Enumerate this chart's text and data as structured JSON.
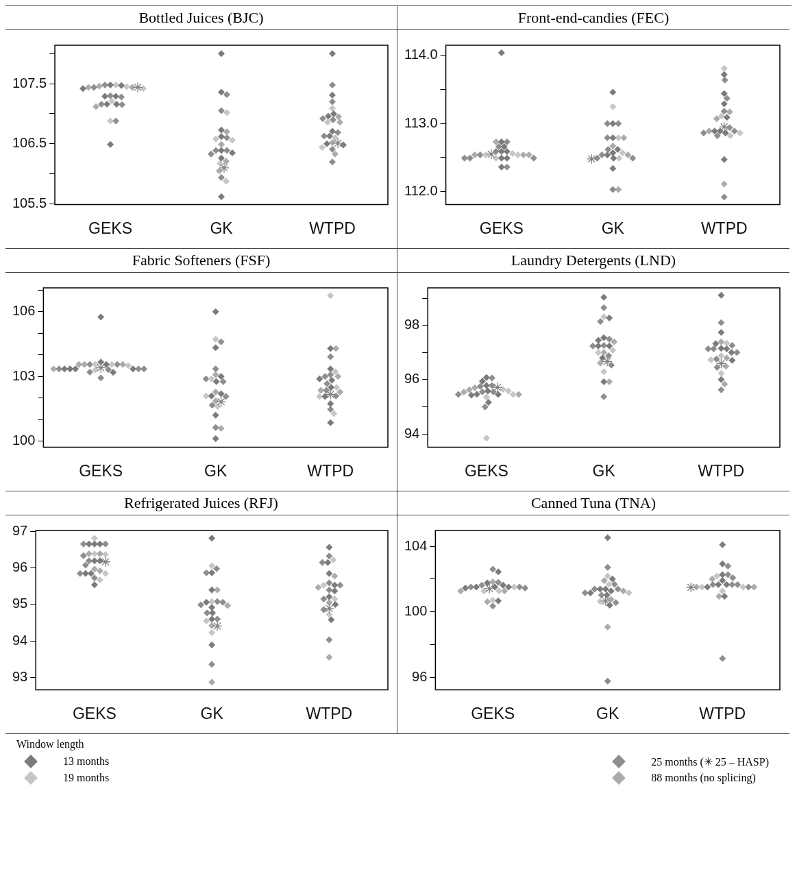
{
  "chart_data": [
    {
      "type": "scatter",
      "title": "Bottled Juices (BJC)",
      "categories": [
        "GEKS",
        "GK",
        "WTPD"
      ],
      "marker": "diamond",
      "legend": "bottom",
      "legend_title": "Window length",
      "ylim": [
        105.49,
        108.14
      ],
      "yticks": [
        105.5,
        {
          "value": 106,
          "label": null
        },
        106.5,
        {
          "value": 107,
          "label": null
        },
        107.5,
        {
          "value": 108,
          "label": null
        }
      ],
      "series": [
        {
          "name": "13 months",
          "color": "#7b7b7b",
          "x": [
            "GEKS",
            "GEKS",
            "GEKS",
            "GEKS",
            "GEKS",
            "GEKS",
            "GEKS",
            "GEKS",
            "GK",
            "GK",
            "GK",
            "GK",
            "GK",
            "GK",
            "GK",
            "GK",
            "WTPD",
            "WTPD",
            "WTPD",
            "WTPD",
            "WTPD",
            "WTPD",
            "WTPD",
            "WTPD"
          ],
          "values": [
            107.47,
            107.42,
            107.48,
            107.29,
            107.29,
            107.16,
            107.16,
            106.49,
            108.0,
            107.36,
            106.73,
            106.62,
            106.39,
            106.35,
            106.26,
            105.62,
            108.0,
            107.31,
            107.0,
            106.96,
            106.71,
            106.63,
            106.48,
            106.5
          ]
        },
        {
          "name": "19 months",
          "color": "#c6c6c6",
          "x": [
            "GEKS",
            "GEKS",
            "GEKS",
            "GEKS",
            "GEKS",
            "GK",
            "GK",
            "GK",
            "GK",
            "GK",
            "WTPD",
            "WTPD",
            "WTPD",
            "WTPD"
          ],
          "values": [
            107.48,
            107.42,
            107.45,
            107.21,
            106.88,
            107.02,
            106.56,
            106.58,
            106.17,
            105.88,
            107.09,
            106.86,
            106.6,
            106.44
          ]
        },
        {
          "name": "25 months (✳ 25 – HASP)",
          "color": "#8e8e8e",
          "x": [
            "GEKS",
            "GEKS",
            "GEKS",
            "GEKS",
            "GEKS",
            "GEKS",
            "GEKS",
            "GK",
            "GK",
            "GK",
            "GK",
            "GK",
            "GK",
            "GK",
            "WTPD",
            "WTPD",
            "WTPD",
            "WTPD",
            "WTPD",
            "WTPD",
            "WTPD",
            "WTPD"
          ],
          "values": [
            107.44,
            107.48,
            107.3,
            107.28,
            107.16,
            107.15,
            106.88,
            107.32,
            107.05,
            106.6,
            106.39,
            106.33,
            106.39,
            105.94,
            107.48,
            107.2,
            106.9,
            106.92,
            106.69,
            106.63,
            106.41,
            106.2
          ]
        },
        {
          "name": "88 months (no splicing)",
          "color": "#ababab",
          "x": [
            "GEKS",
            "GEKS",
            "GEKS",
            "GEKS",
            "GK",
            "GK",
            "GK",
            "GK",
            "WTPD",
            "WTPD",
            "WTPD",
            "WTPD"
          ],
          "values": [
            107.44,
            107.44,
            107.46,
            107.12,
            106.7,
            106.49,
            106.21,
            106.05,
            106.95,
            106.86,
            106.52,
            106.33
          ]
        },
        {
          "color": "#808080",
          "marker": "cross",
          "x": [
            "GEKS",
            "GK",
            "WTPD"
          ],
          "values": [
            107.44,
            106.1,
            106.51
          ]
        }
      ]
    },
    {
      "type": "scatter",
      "title": "Front-end-candies (FEC)",
      "categories": [
        "GEKS",
        "GK",
        "WTPD"
      ],
      "marker": "diamond",
      "ylim": [
        111.81,
        114.15
      ],
      "yticks": [
        {
          "value": 112,
          "label": "112.0"
        },
        {
          "value": 112.5,
          "label": null
        },
        {
          "value": 113,
          "label": "113.0"
        },
        {
          "value": 113.5,
          "label": null
        },
        {
          "value": 114,
          "label": "114.0"
        }
      ],
      "series": [
        {
          "color": "#7b7b7b",
          "x": [
            "GEKS",
            "GEKS",
            "GEKS",
            "GEKS",
            "GEKS",
            "GEKS",
            "GEKS",
            "GEKS",
            "GK",
            "GK",
            "GK",
            "GK",
            "GK",
            "GK",
            "GK",
            "GK",
            "WTPD",
            "WTPD",
            "WTPD",
            "WTPD",
            "WTPD",
            "WTPD",
            "WTPD",
            "WTPD"
          ],
          "values": [
            114.04,
            112.49,
            112.49,
            112.59,
            112.59,
            112.66,
            112.73,
            112.36,
            113.46,
            113.0,
            112.79,
            112.62,
            112.57,
            112.54,
            112.49,
            112.34,
            113.72,
            113.44,
            113.29,
            113.09,
            112.89,
            112.86,
            112.89,
            112.47
          ]
        },
        {
          "color": "#c6c6c6",
          "x": [
            "GEKS",
            "GEKS",
            "GEKS",
            "GEKS",
            "GK",
            "GK",
            "GK",
            "GK",
            "WTPD",
            "WTPD",
            "WTPD",
            "WTPD"
          ],
          "values": [
            112.54,
            112.54,
            112.49,
            112.56,
            113.25,
            112.79,
            112.57,
            112.49,
            113.81,
            113.11,
            112.86,
            112.82
          ]
        },
        {
          "color": "#8e8e8e",
          "x": [
            "GEKS",
            "GEKS",
            "GEKS",
            "GEKS",
            "GEKS",
            "GEKS",
            "GEKS",
            "GEKS",
            "GK",
            "GK",
            "GK",
            "GK",
            "GK",
            "GK",
            "GK",
            "GK",
            "WTPD",
            "WTPD",
            "WTPD",
            "WTPD",
            "WTPD",
            "WTPD",
            "WTPD",
            "WTPD"
          ],
          "values": [
            112.54,
            112.49,
            112.49,
            112.49,
            112.59,
            112.66,
            112.73,
            112.36,
            113.0,
            113.0,
            112.79,
            112.62,
            112.54,
            112.49,
            112.49,
            112.03,
            113.64,
            113.37,
            113.18,
            112.94,
            112.89,
            112.86,
            112.82,
            111.92
          ]
        },
        {
          "color": "#ababab",
          "x": [
            "GEKS",
            "GEKS",
            "GEKS",
            "GEKS",
            "GK",
            "GK",
            "GK",
            "GK",
            "WTPD",
            "WTPD",
            "WTPD",
            "WTPD"
          ],
          "values": [
            112.54,
            112.54,
            112.54,
            112.73,
            112.79,
            112.67,
            112.54,
            112.03,
            113.17,
            113.07,
            112.89,
            112.11
          ]
        },
        {
          "color": "#808080",
          "marker": "cross",
          "x": [
            "GEKS",
            "GK",
            "WTPD"
          ],
          "values": [
            112.55,
            112.48,
            112.95
          ]
        }
      ]
    },
    {
      "type": "scatter",
      "title": "Fabric Softeners (FSF)",
      "categories": [
        "GEKS",
        "GK",
        "WTPD"
      ],
      "marker": "diamond",
      "ylim": [
        99.73,
        107.1
      ],
      "yticks": [
        100,
        {
          "value": 101,
          "label": null
        },
        {
          "value": 102,
          "label": null
        },
        103,
        {
          "value": 104,
          "label": null
        },
        {
          "value": 105,
          "label": null
        },
        106,
        {
          "value": 107,
          "label": null
        }
      ],
      "series": [
        {
          "color": "#7b7b7b",
          "x": [
            "GEKS",
            "GEKS",
            "GEKS",
            "GEKS",
            "GEKS",
            "GEKS",
            "GEKS",
            "GEKS",
            "GK",
            "GK",
            "GK",
            "GK",
            "GK",
            "GK",
            "GK",
            "GK",
            "WTPD",
            "WTPD",
            "WTPD",
            "WTPD",
            "WTPD",
            "WTPD",
            "WTPD",
            "WTPD"
          ],
          "values": [
            105.75,
            103.35,
            103.35,
            103.35,
            103.19,
            103.35,
            103.67,
            103.56,
            106.0,
            104.33,
            103.0,
            102.76,
            102.2,
            102.1,
            101.21,
            100.12,
            104.29,
            103.35,
            102.89,
            102.83,
            102.49,
            102.07,
            101.74,
            100.86
          ]
        },
        {
          "color": "#c6c6c6",
          "x": [
            "GEKS",
            "GEKS",
            "GEKS",
            "GEKS",
            "GK",
            "GK",
            "GK",
            "GK",
            "WTPD",
            "WTPD",
            "WTPD",
            "WTPD",
            "WTPD"
          ],
          "values": [
            103.3,
            103.56,
            103.5,
            103.56,
            104.72,
            102.89,
            102.1,
            101.61,
            106.74,
            103.22,
            102.49,
            102.07,
            101.28
          ]
        },
        {
          "color": "#8e8e8e",
          "x": [
            "GEKS",
            "GEKS",
            "GEKS",
            "GEKS",
            "GEKS",
            "GEKS",
            "GEKS",
            "GEKS",
            "GK",
            "GK",
            "GK",
            "GK",
            "GK",
            "GK",
            "GK",
            "WTPD",
            "WTPD",
            "WTPD",
            "WTPD",
            "WTPD",
            "WTPD",
            "WTPD"
          ],
          "values": [
            103.35,
            103.35,
            103.35,
            103.32,
            103.2,
            103.56,
            103.56,
            102.94,
            104.6,
            103.35,
            102.76,
            102.89,
            102.07,
            101.67,
            100.64,
            103.91,
            103.0,
            103.08,
            102.67,
            102.36,
            102.1,
            101.48
          ]
        },
        {
          "color": "#ababab",
          "x": [
            "GEKS",
            "GEKS",
            "GEKS",
            "GEKS",
            "GK",
            "GK",
            "GK",
            "GK",
            "WTPD",
            "WTPD",
            "WTPD",
            "WTPD"
          ],
          "values": [
            103.35,
            103.56,
            103.56,
            103.56,
            103.08,
            102.28,
            101.87,
            100.6,
            104.29,
            103.0,
            102.36,
            102.28
          ]
        },
        {
          "color": "#808080",
          "marker": "cross",
          "x": [
            "GEKS",
            "GK",
            "WTPD"
          ],
          "values": [
            103.4,
            101.83,
            102.17
          ]
        }
      ]
    },
    {
      "type": "scatter",
      "title": "Laundry Detergents (LND)",
      "categories": [
        "GEKS",
        "GK",
        "WTPD"
      ],
      "marker": "diamond",
      "ylim": [
        93.51,
        99.38
      ],
      "yticks": [
        94,
        {
          "value": 95,
          "label": null
        },
        96,
        {
          "value": 97,
          "label": null
        },
        98,
        {
          "value": 99,
          "label": null
        }
      ],
      "series": [
        {
          "color": "#7b7b7b",
          "x": [
            "GEKS",
            "GEKS",
            "GEKS",
            "GEKS",
            "GEKS",
            "GEKS",
            "GEKS",
            "GEKS",
            "GK",
            "GK",
            "GK",
            "GK",
            "GK",
            "GK",
            "GK",
            "GK",
            "WTPD",
            "WTPD",
            "WTPD",
            "WTPD",
            "WTPD",
            "WTPD",
            "WTPD",
            "WTPD"
          ],
          "values": [
            95.58,
            95.45,
            95.43,
            96.08,
            95.94,
            95.78,
            95.16,
            95.46,
            99.03,
            98.27,
            97.54,
            97.45,
            97.24,
            97.24,
            96.8,
            95.92,
            99.11,
            97.74,
            97.32,
            97.13,
            97.15,
            97.0,
            96.71,
            96.0
          ]
        },
        {
          "color": "#c6c6c6",
          "x": [
            "GEKS",
            "GEKS",
            "GEKS",
            "GEKS",
            "GEKS",
            "GK",
            "GK",
            "GK",
            "GK",
            "WTPD",
            "WTPD",
            "WTPD",
            "WTPD"
          ],
          "values": [
            95.58,
            95.45,
            95.64,
            95.35,
            93.84,
            98.31,
            97.08,
            96.99,
            96.29,
            97.34,
            96.88,
            96.73,
            96.23
          ]
        },
        {
          "color": "#8e8e8e",
          "x": [
            "GEKS",
            "GEKS",
            "GEKS",
            "GEKS",
            "GEKS",
            "GEKS",
            "GEKS",
            "GK",
            "GK",
            "GK",
            "GK",
            "GK",
            "GK",
            "GK",
            "GK",
            "WTPD",
            "WTPD",
            "WTPD",
            "WTPD",
            "WTPD",
            "WTPD",
            "WTPD",
            "WTPD"
          ],
          "values": [
            95.55,
            95.45,
            95.55,
            96.06,
            95.75,
            95.78,
            94.99,
            98.65,
            98.14,
            97.49,
            97.26,
            97.24,
            96.88,
            96.53,
            95.37,
            98.1,
            97.26,
            97.13,
            97.13,
            97.0,
            96.76,
            96.45,
            95.62
          ]
        },
        {
          "color": "#ababab",
          "x": [
            "GEKS",
            "GEKS",
            "GEKS",
            "GEKS",
            "GK",
            "GK",
            "GK",
            "GK",
            "WTPD",
            "WTPD",
            "WTPD",
            "WTPD"
          ],
          "values": [
            95.54,
            95.62,
            95.7,
            95.45,
            97.39,
            97.0,
            96.61,
            95.92,
            97.39,
            96.8,
            96.49,
            95.83
          ]
        },
        {
          "color": "#808080",
          "marker": "cross",
          "x": [
            "GEKS",
            "GK",
            "WTPD"
          ],
          "values": [
            95.71,
            96.67,
            96.59
          ]
        }
      ]
    },
    {
      "type": "scatter",
      "title": "Refrigerated Juices (RFJ)",
      "categories": [
        "GEKS",
        "GK",
        "WTPD"
      ],
      "marker": "diamond",
      "ylim": [
        92.66,
        97.03
      ],
      "yticks": [
        93,
        94,
        95,
        96,
        97
      ],
      "series": [
        {
          "color": "#7b7b7b",
          "x": [
            "GEKS",
            "GEKS",
            "GEKS",
            "GEKS",
            "GEKS",
            "GEKS",
            "GEKS",
            "GEKS",
            "GK",
            "GK",
            "GK",
            "GK",
            "GK",
            "GK",
            "GK",
            "GK",
            "WTPD",
            "WTPD",
            "WTPD",
            "WTPD",
            "WTPD",
            "WTPD",
            "WTPD",
            "WTPD"
          ],
          "values": [
            96.66,
            96.66,
            96.66,
            96.2,
            96.2,
            95.85,
            95.85,
            95.54,
            96.82,
            95.87,
            95.4,
            94.92,
            95.06,
            94.77,
            94.6,
            93.89,
            96.57,
            96.15,
            95.85,
            95.53,
            95.37,
            95.21,
            95.0,
            94.58
          ]
        },
        {
          "color": "#c6c6c6",
          "x": [
            "GEKS",
            "GEKS",
            "GEKS",
            "GEKS",
            "GEKS",
            "GK",
            "GK",
            "GK",
            "GK",
            "WTPD",
            "WTPD",
            "WTPD",
            "WTPD"
          ],
          "values": [
            96.82,
            96.37,
            96.39,
            95.85,
            95.67,
            96.06,
            95.08,
            94.55,
            94.23,
            96.22,
            95.53,
            95.15,
            94.72
          ]
        },
        {
          "color": "#8e8e8e",
          "x": [
            "GEKS",
            "GEKS",
            "GEKS",
            "GEKS",
            "GEKS",
            "GEKS",
            "GEKS",
            "GK",
            "GK",
            "GK",
            "GK",
            "GK",
            "GK",
            "GK",
            "GK",
            "WTPD",
            "WTPD",
            "WTPD",
            "WTPD",
            "WTPD",
            "WTPD",
            "WTPD",
            "WTPD"
          ],
          "values": [
            96.66,
            96.66,
            96.34,
            96.2,
            96.08,
            95.85,
            95.73,
            95.87,
            95.98,
            95.08,
            94.99,
            95.06,
            94.77,
            94.6,
            93.36,
            96.33,
            96.15,
            95.59,
            95.53,
            95.4,
            95.15,
            94.86,
            94.03
          ]
        },
        {
          "color": "#ababab",
          "x": [
            "GEKS",
            "GEKS",
            "GEKS",
            "GEKS",
            "GK",
            "GK",
            "GK",
            "GK",
            "WTPD",
            "WTPD",
            "WTPD",
            "WTPD"
          ],
          "values": [
            96.39,
            96.39,
            95.97,
            95.92,
            95.4,
            94.97,
            94.42,
            92.87,
            95.78,
            95.47,
            95.05,
            93.55
          ]
        },
        {
          "color": "#808080",
          "marker": "cross",
          "x": [
            "GEKS",
            "GK",
            "WTPD"
          ],
          "values": [
            96.17,
            94.41,
            94.89
          ]
        }
      ]
    },
    {
      "type": "scatter",
      "title": "Canned Tuna (TNA)",
      "categories": [
        "GEKS",
        "GK",
        "WTPD"
      ],
      "marker": "diamond",
      "ylim": [
        95.23,
        104.97
      ],
      "yticks": [
        96,
        {
          "value": 98,
          "label": null
        },
        100,
        {
          "value": 102,
          "label": null
        },
        104
      ],
      "series": [
        {
          "color": "#7b7b7b",
          "x": [
            "GEKS",
            "GEKS",
            "GEKS",
            "GEKS",
            "GEKS",
            "GEKS",
            "GEKS",
            "GEKS",
            "GK",
            "GK",
            "GK",
            "GK",
            "GK",
            "GK",
            "GK",
            "GK",
            "WTPD",
            "WTPD",
            "WTPD",
            "WTPD",
            "WTPD",
            "WTPD",
            "WTPD",
            "WTPD"
          ],
          "values": [
            101.51,
            101.51,
            101.51,
            101.76,
            101.63,
            101.45,
            100.66,
            102.45,
            104.53,
            102.0,
            101.39,
            101.39,
            101.27,
            101.16,
            101.02,
            100.4,
            104.1,
            102.93,
            102.27,
            101.91,
            101.66,
            101.66,
            101.51,
            100.95
          ]
        },
        {
          "color": "#c6c6c6",
          "x": [
            "GEKS",
            "GEKS",
            "GEKS",
            "GEKS",
            "GK",
            "GK",
            "GK",
            "GK",
            "WTPD",
            "WTPD",
            "WTPD",
            "WTPD"
          ],
          "values": [
            101.51,
            101.27,
            101.27,
            100.71,
            102.18,
            101.68,
            101.16,
            100.63,
            102.18,
            101.51,
            101.51,
            101.27
          ]
        },
        {
          "color": "#8e8e8e",
          "x": [
            "GEKS",
            "GEKS",
            "GEKS",
            "GEKS",
            "GEKS",
            "GEKS",
            "GEKS",
            "GK",
            "GK",
            "GK",
            "GK",
            "GK",
            "GK",
            "GK",
            "GK",
            "WTPD",
            "WTPD",
            "WTPD",
            "WTPD",
            "WTPD",
            "WTPD",
            "WTPD",
            "WTPD"
          ],
          "values": [
            101.51,
            101.51,
            101.63,
            101.8,
            101.45,
            100.35,
            102.6,
            102.72,
            101.68,
            101.39,
            101.39,
            101.16,
            101.02,
            100.56,
            95.76,
            102.79,
            102.27,
            102.08,
            101.66,
            101.66,
            101.66,
            101.51,
            97.14
          ]
        },
        {
          "color": "#ababab",
          "x": [
            "GEKS",
            "GEKS",
            "GEKS",
            "GEKS",
            "GK",
            "GK",
            "GK",
            "GK",
            "WTPD",
            "WTPD",
            "WTPD",
            "WTPD"
          ],
          "values": [
            101.27,
            101.27,
            101.83,
            100.61,
            101.9,
            101.27,
            100.76,
            99.07,
            102.0,
            101.51,
            101.51,
            100.95
          ]
        },
        {
          "color": "#808080",
          "marker": "cross",
          "x": [
            "GEKS",
            "GK",
            "WTPD"
          ],
          "values": [
            101.41,
            100.66,
            101.49
          ]
        }
      ]
    }
  ]
}
